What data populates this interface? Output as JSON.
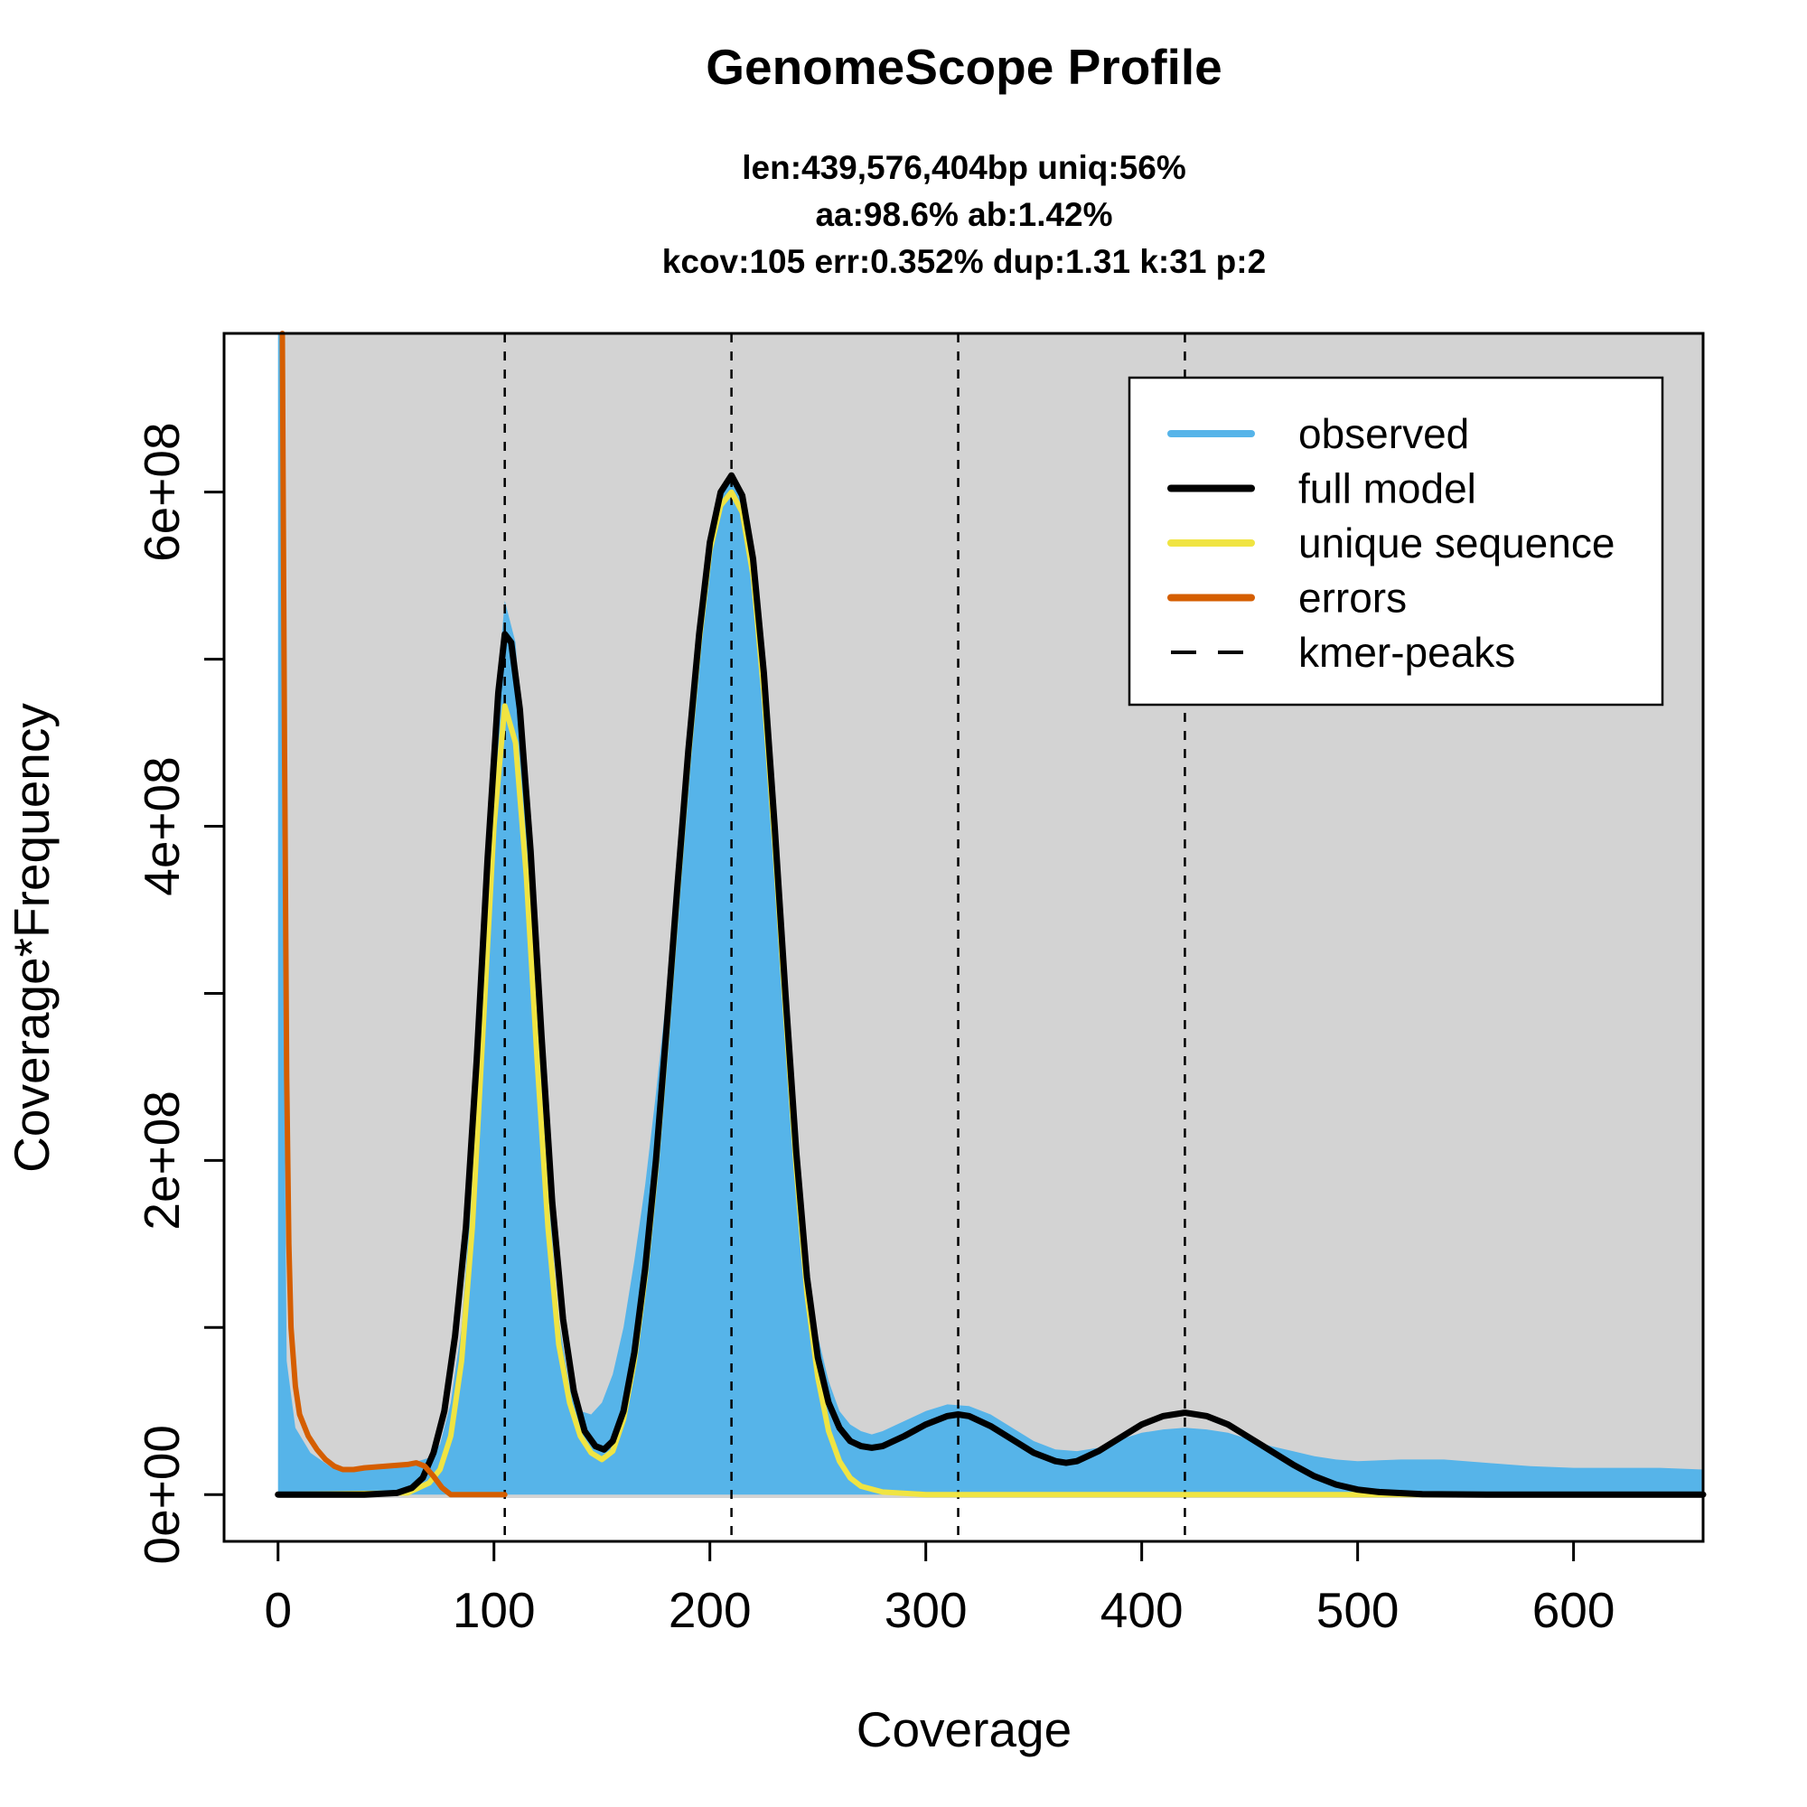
{
  "chart_data": {
    "type": "area",
    "title": "GenomeScope Profile",
    "subtitle_lines": [
      "len:439,576,404bp uniq:56%",
      "aa:98.6% ab:1.42%",
      "kcov:105 err:0.352%  dup:1.31  k:31 p:2"
    ],
    "xlabel": "Coverage",
    "ylabel": "Coverage*Frequency",
    "xlim": [
      -25,
      660
    ],
    "ylim": [
      -28000000,
      695000000
    ],
    "x_ticks": [
      0,
      100,
      200,
      300,
      400,
      500,
      600
    ],
    "x_tick_labels": [
      "0",
      "100",
      "200",
      "300",
      "400",
      "500",
      "600"
    ],
    "y_ticks": [
      0,
      100000000,
      200000000,
      300000000,
      400000000,
      500000000,
      600000000
    ],
    "y_tick_labels": [
      "0e+00",
      "",
      "2e+08",
      "",
      "4e+08",
      "",
      "6e+08"
    ],
    "kmer_peaks": [
      105,
      210,
      315,
      420
    ],
    "background_color": "#d3d3d3",
    "colors": {
      "observed": "#56b4e9",
      "full_model": "#000000",
      "unique_sequence": "#f0e442",
      "errors": "#d55e00",
      "kmer_peaks": "#000000"
    },
    "legend_position": "top-right",
    "legend": [
      "observed",
      "full model",
      "unique sequence",
      "errors",
      "kmer-peaks"
    ],
    "series": [
      {
        "name": "observed",
        "style": "filled-area",
        "points": [
          [
            0,
            700000000
          ],
          [
            1,
            700000000
          ],
          [
            2,
            400000000
          ],
          [
            4,
            80000000
          ],
          [
            8,
            40000000
          ],
          [
            15,
            25000000
          ],
          [
            25,
            16000000
          ],
          [
            40,
            15000000
          ],
          [
            60,
            18000000
          ],
          [
            70,
            22000000
          ],
          [
            75,
            30000000
          ],
          [
            80,
            55000000
          ],
          [
            85,
            100000000
          ],
          [
            90,
            190000000
          ],
          [
            95,
            320000000
          ],
          [
            100,
            460000000
          ],
          [
            105,
            535000000
          ],
          [
            110,
            510000000
          ],
          [
            115,
            420000000
          ],
          [
            120,
            300000000
          ],
          [
            125,
            185000000
          ],
          [
            130,
            105000000
          ],
          [
            135,
            65000000
          ],
          [
            140,
            50000000
          ],
          [
            145,
            48000000
          ],
          [
            150,
            55000000
          ],
          [
            155,
            72000000
          ],
          [
            160,
            100000000
          ],
          [
            165,
            140000000
          ],
          [
            170,
            185000000
          ],
          [
            175,
            240000000
          ],
          [
            180,
            300000000
          ],
          [
            185,
            370000000
          ],
          [
            190,
            445000000
          ],
          [
            195,
            520000000
          ],
          [
            200,
            570000000
          ],
          [
            205,
            600000000
          ],
          [
            210,
            610000000
          ],
          [
            215,
            600000000
          ],
          [
            220,
            560000000
          ],
          [
            225,
            490000000
          ],
          [
            230,
            400000000
          ],
          [
            235,
            300000000
          ],
          [
            240,
            210000000
          ],
          [
            245,
            140000000
          ],
          [
            250,
            95000000
          ],
          [
            255,
            68000000
          ],
          [
            260,
            50000000
          ],
          [
            265,
            42000000
          ],
          [
            270,
            38000000
          ],
          [
            275,
            36000000
          ],
          [
            280,
            38000000
          ],
          [
            290,
            44000000
          ],
          [
            300,
            50000000
          ],
          [
            310,
            54000000
          ],
          [
            320,
            53000000
          ],
          [
            330,
            48000000
          ],
          [
            340,
            40000000
          ],
          [
            350,
            32000000
          ],
          [
            360,
            27000000
          ],
          [
            370,
            26000000
          ],
          [
            380,
            28000000
          ],
          [
            390,
            33000000
          ],
          [
            400,
            37000000
          ],
          [
            410,
            39000000
          ],
          [
            420,
            40000000
          ],
          [
            430,
            39000000
          ],
          [
            440,
            37000000
          ],
          [
            450,
            33000000
          ],
          [
            460,
            29000000
          ],
          [
            470,
            26000000
          ],
          [
            480,
            23000000
          ],
          [
            490,
            21000000
          ],
          [
            500,
            20000000
          ],
          [
            520,
            21000000
          ],
          [
            540,
            21000000
          ],
          [
            560,
            19000000
          ],
          [
            580,
            17000000
          ],
          [
            600,
            16000000
          ],
          [
            620,
            16000000
          ],
          [
            640,
            16000000
          ],
          [
            660,
            15000000
          ]
        ]
      },
      {
        "name": "unique sequence",
        "style": "line",
        "points": [
          [
            0,
            0
          ],
          [
            60,
            1000000
          ],
          [
            70,
            7000000
          ],
          [
            75,
            15000000
          ],
          [
            80,
            35000000
          ],
          [
            85,
            80000000
          ],
          [
            90,
            160000000
          ],
          [
            95,
            280000000
          ],
          [
            100,
            400000000
          ],
          [
            105,
            472000000
          ],
          [
            110,
            450000000
          ],
          [
            115,
            370000000
          ],
          [
            120,
            260000000
          ],
          [
            125,
            160000000
          ],
          [
            130,
            90000000
          ],
          [
            135,
            55000000
          ],
          [
            140,
            35000000
          ],
          [
            145,
            25000000
          ],
          [
            150,
            21000000
          ],
          [
            155,
            26000000
          ],
          [
            160,
            45000000
          ],
          [
            165,
            80000000
          ],
          [
            170,
            130000000
          ],
          [
            175,
            195000000
          ],
          [
            180,
            275000000
          ],
          [
            185,
            360000000
          ],
          [
            190,
            440000000
          ],
          [
            195,
            510000000
          ],
          [
            200,
            565000000
          ],
          [
            205,
            592000000
          ],
          [
            210,
            600000000
          ],
          [
            215,
            588000000
          ],
          [
            220,
            550000000
          ],
          [
            225,
            480000000
          ],
          [
            230,
            390000000
          ],
          [
            235,
            290000000
          ],
          [
            240,
            195000000
          ],
          [
            245,
            120000000
          ],
          [
            250,
            70000000
          ],
          [
            255,
            38000000
          ],
          [
            260,
            20000000
          ],
          [
            265,
            10000000
          ],
          [
            270,
            5000000
          ],
          [
            280,
            1500000
          ],
          [
            300,
            0
          ],
          [
            660,
            0
          ]
        ]
      },
      {
        "name": "full model",
        "style": "line",
        "points": [
          [
            0,
            0
          ],
          [
            40,
            0
          ],
          [
            55,
            1000000
          ],
          [
            62,
            4000000
          ],
          [
            67,
            10000000
          ],
          [
            72,
            25000000
          ],
          [
            77,
            50000000
          ],
          [
            82,
            95000000
          ],
          [
            87,
            160000000
          ],
          [
            92,
            260000000
          ],
          [
            97,
            380000000
          ],
          [
            102,
            480000000
          ],
          [
            105,
            515000000
          ],
          [
            108,
            510000000
          ],
          [
            112,
            470000000
          ],
          [
            117,
            385000000
          ],
          [
            122,
            275000000
          ],
          [
            127,
            175000000
          ],
          [
            132,
            105000000
          ],
          [
            137,
            62000000
          ],
          [
            142,
            38000000
          ],
          [
            147,
            29000000
          ],
          [
            151,
            27000000
          ],
          [
            155,
            32000000
          ],
          [
            160,
            50000000
          ],
          [
            165,
            85000000
          ],
          [
            170,
            135000000
          ],
          [
            175,
            200000000
          ],
          [
            180,
            280000000
          ],
          [
            185,
            365000000
          ],
          [
            190,
            445000000
          ],
          [
            195,
            515000000
          ],
          [
            200,
            570000000
          ],
          [
            205,
            600000000
          ],
          [
            210,
            610000000
          ],
          [
            215,
            598000000
          ],
          [
            220,
            560000000
          ],
          [
            225,
            492000000
          ],
          [
            230,
            400000000
          ],
          [
            235,
            300000000
          ],
          [
            240,
            205000000
          ],
          [
            245,
            130000000
          ],
          [
            250,
            82000000
          ],
          [
            255,
            55000000
          ],
          [
            260,
            40000000
          ],
          [
            265,
            32000000
          ],
          [
            270,
            29000000
          ],
          [
            275,
            28000000
          ],
          [
            280,
            29000000
          ],
          [
            290,
            35000000
          ],
          [
            300,
            42000000
          ],
          [
            310,
            47000000
          ],
          [
            315,
            48000000
          ],
          [
            320,
            47000000
          ],
          [
            330,
            41000000
          ],
          [
            340,
            33000000
          ],
          [
            350,
            25000000
          ],
          [
            360,
            20000000
          ],
          [
            365,
            19000000
          ],
          [
            370,
            20000000
          ],
          [
            380,
            26000000
          ],
          [
            390,
            34000000
          ],
          [
            400,
            42000000
          ],
          [
            410,
            47000000
          ],
          [
            420,
            49000000
          ],
          [
            430,
            47000000
          ],
          [
            440,
            42000000
          ],
          [
            450,
            34000000
          ],
          [
            460,
            26000000
          ],
          [
            470,
            18000000
          ],
          [
            480,
            11000000
          ],
          [
            490,
            6000000
          ],
          [
            500,
            3000000
          ],
          [
            510,
            1500000
          ],
          [
            530,
            300000
          ],
          [
            560,
            0
          ],
          [
            660,
            0
          ]
        ]
      },
      {
        "name": "errors",
        "style": "line",
        "points": [
          [
            2,
            695000000
          ],
          [
            3,
            450000000
          ],
          [
            4,
            250000000
          ],
          [
            5,
            150000000
          ],
          [
            6,
            100000000
          ],
          [
            8,
            65000000
          ],
          [
            10,
            48000000
          ],
          [
            14,
            35000000
          ],
          [
            18,
            27000000
          ],
          [
            22,
            21000000
          ],
          [
            26,
            17000000
          ],
          [
            30,
            15000000
          ],
          [
            35,
            15000000
          ],
          [
            40,
            16000000
          ],
          [
            50,
            17000000
          ],
          [
            60,
            18000000
          ],
          [
            64,
            19000000
          ],
          [
            68,
            17000000
          ],
          [
            72,
            11000000
          ],
          [
            76,
            4000000
          ],
          [
            80,
            0
          ],
          [
            105,
            0
          ]
        ]
      }
    ]
  }
}
